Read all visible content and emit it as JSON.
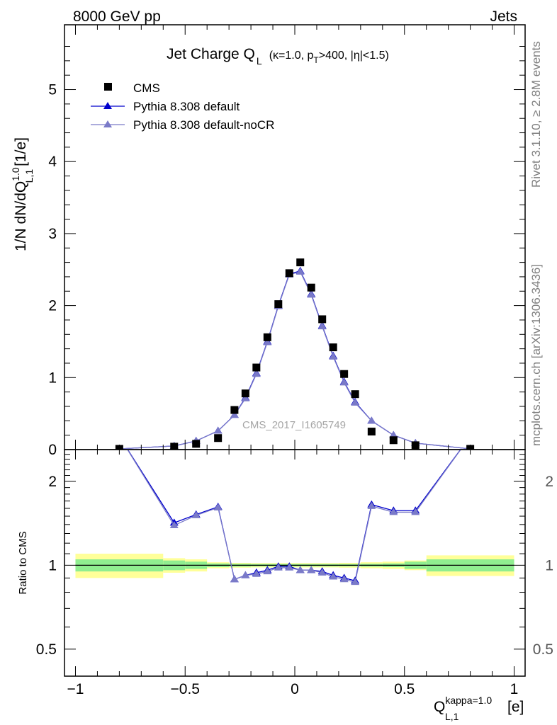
{
  "header": {
    "left": "8000 GeV pp",
    "right": "Jets"
  },
  "side_labels": {
    "rivet": "Rivet 3.1.10, ≥ 2.8M events",
    "source": "mcplots.cern.ch [arXiv:1306.3436]"
  },
  "watermark": "CMS_2017_I1605749",
  "colors": {
    "cms": "#000000",
    "pythia_default": "#0000cc",
    "pythia_nocr": "#7a7ac8",
    "band_inner": "#90ee90",
    "band_outer": "#ffff99"
  },
  "chart_data": [
    {
      "type": "scatter",
      "title": "Jet Charge Q_L (κ=1.0, p_T>400, |η|<1.5)",
      "title_main": "Jet Charge Q",
      "title_sub": "L",
      "title_rest_1": "(κ=1.0, p",
      "title_rest_2": "T",
      "title_rest_3": ">400, |η|<1.5)",
      "ylabel": "1/N dN/dQ_{L,1}^{1.0} [1/e]",
      "ylabel_main": "1/N dN/dQ",
      "ylabel_sup": "1.0",
      "ylabel_sub": "L,1",
      "ylabel_unit": "[1/e]",
      "xlim": [
        -1.05,
        1.05
      ],
      "ylim": [
        0,
        5.9
      ],
      "yticks": [
        "0",
        "1",
        "2",
        "3",
        "4",
        "5"
      ],
      "legend_position": "top-left",
      "series": [
        {
          "name": "CMS",
          "x": [
            -0.8,
            -0.55,
            -0.45,
            -0.35,
            -0.275,
            -0.225,
            -0.175,
            -0.125,
            -0.075,
            -0.025,
            0.025,
            0.075,
            0.125,
            0.175,
            0.225,
            0.275,
            0.35,
            0.45,
            0.55,
            0.8
          ],
          "y": [
            0.01,
            0.04,
            0.08,
            0.16,
            0.55,
            0.78,
            1.14,
            1.56,
            2.02,
            2.45,
            2.6,
            2.25,
            1.81,
            1.42,
            1.05,
            0.77,
            0.25,
            0.13,
            0.06,
            0.01
          ]
        },
        {
          "name": "Pythia 8.308 default",
          "x": [
            -0.8,
            -0.55,
            -0.45,
            -0.35,
            -0.275,
            -0.225,
            -0.175,
            -0.125,
            -0.075,
            -0.025,
            0.025,
            0.075,
            0.125,
            0.175,
            0.225,
            0.275,
            0.35,
            0.45,
            0.55,
            0.8
          ],
          "y": [
            0.01,
            0.05,
            0.12,
            0.26,
            0.48,
            0.72,
            1.06,
            1.5,
            2.0,
            2.44,
            2.48,
            2.16,
            1.72,
            1.3,
            0.94,
            0.66,
            0.4,
            0.2,
            0.09,
            0.01
          ]
        },
        {
          "name": "Pythia 8.308 default-noCR",
          "x": [
            -0.8,
            -0.55,
            -0.45,
            -0.35,
            -0.275,
            -0.225,
            -0.175,
            -0.125,
            -0.075,
            -0.025,
            0.025,
            0.075,
            0.125,
            0.175,
            0.225,
            0.275,
            0.35,
            0.45,
            0.55,
            0.8
          ],
          "y": [
            0.01,
            0.05,
            0.12,
            0.26,
            0.48,
            0.71,
            1.05,
            1.49,
            1.99,
            2.43,
            2.47,
            2.15,
            1.71,
            1.29,
            0.93,
            0.65,
            0.4,
            0.2,
            0.09,
            0.01
          ]
        }
      ]
    },
    {
      "type": "line",
      "ylabel": "Ratio to CMS",
      "xlabel": "Q_{L,1}^{kappa=1.0} [e]",
      "xlabel_main": "Q",
      "xlabel_sup": "kappa=1.0",
      "xlabel_sub": "L,1",
      "xlabel_unit": "[e]",
      "xlim": [
        -1.05,
        1.05
      ],
      "ylim": [
        0.4,
        2.6
      ],
      "ylog": true,
      "xticks": [
        "−1",
        "−0.5",
        "0",
        "0.5",
        "1"
      ],
      "yticks": [
        "0.5",
        "1",
        "2"
      ],
      "reference_line": 1,
      "uncertainty_bands": {
        "edges": [
          -1,
          -0.6,
          -0.5,
          -0.4,
          -0.3,
          -0.2,
          -0.1,
          0,
          0.1,
          0.2,
          0.3,
          0.4,
          0.5,
          0.6,
          1
        ],
        "inner_half_width": [
          0.05,
          0.04,
          0.03,
          0.015,
          0.012,
          0.01,
          0.01,
          0.01,
          0.01,
          0.01,
          0.012,
          0.015,
          0.03,
          0.05
        ],
        "outer_half_width": [
          0.1,
          0.06,
          0.05,
          0.025,
          0.02,
          0.018,
          0.018,
          0.018,
          0.018,
          0.02,
          0.025,
          0.03,
          0.04,
          0.085
        ]
      },
      "series": [
        {
          "name": "Pythia 8.308 default",
          "x": [
            -0.8,
            -0.55,
            -0.45,
            -0.35,
            -0.275,
            -0.225,
            -0.175,
            -0.125,
            -0.075,
            -0.025,
            0.025,
            0.075,
            0.125,
            0.175,
            0.225,
            0.275,
            0.35,
            0.45,
            0.55,
            0.8
          ],
          "y": [
            2.9,
            1.42,
            1.52,
            1.62,
            0.89,
            0.92,
            0.94,
            0.96,
            0.99,
            0.99,
            0.96,
            0.96,
            0.95,
            0.92,
            0.9,
            0.88,
            1.65,
            1.57,
            1.57,
            2.9
          ]
        },
        {
          "name": "Pythia 8.308 default-noCR",
          "x": [
            -0.8,
            -0.55,
            -0.45,
            -0.35,
            -0.275,
            -0.225,
            -0.175,
            -0.125,
            -0.075,
            -0.025,
            0.025,
            0.075,
            0.125,
            0.175,
            0.225,
            0.275,
            0.35,
            0.45,
            0.55,
            0.8
          ],
          "y": [
            2.9,
            1.39,
            1.51,
            1.61,
            0.89,
            0.92,
            0.93,
            0.95,
            0.98,
            0.98,
            0.96,
            0.96,
            0.94,
            0.91,
            0.89,
            0.87,
            1.63,
            1.55,
            1.55,
            2.9
          ]
        }
      ]
    }
  ]
}
